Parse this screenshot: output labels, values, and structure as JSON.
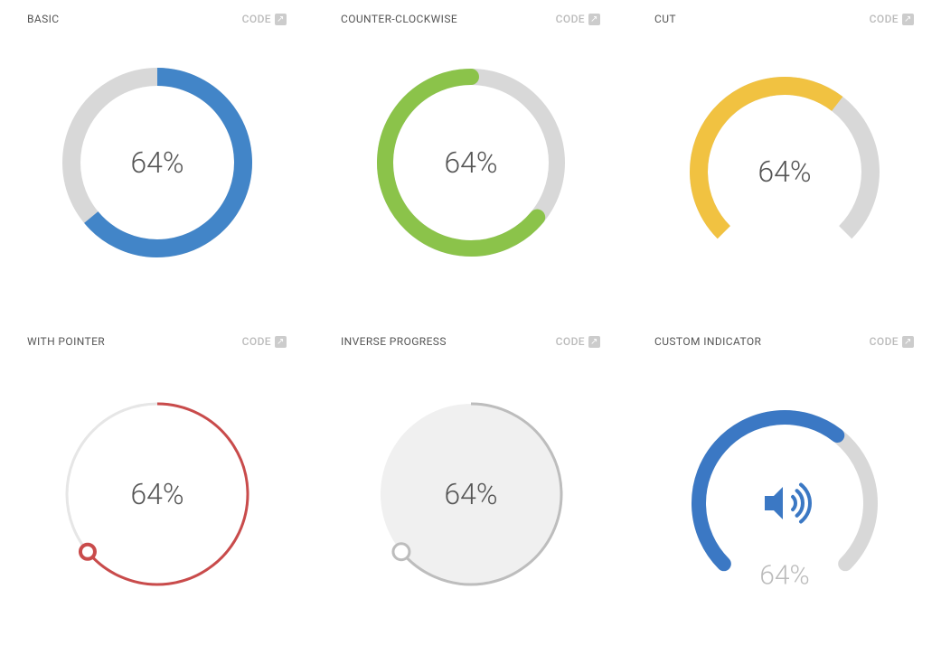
{
  "code_label": "CODE",
  "charts": [
    {
      "id": "basic",
      "title": "BASIC",
      "type": "ring-progress",
      "value": 64,
      "display": "64%",
      "radius": 95,
      "stroke_width": 20,
      "track_color": "#d8d8d8",
      "progress_color": "#4285c8",
      "start_angle": 0,
      "sweep_direction": "cw",
      "arc_span": 360,
      "label_color": "#555555",
      "label_fontsize": 32,
      "background": "#ffffff"
    },
    {
      "id": "ccw",
      "title": "COUNTER-CLOCKWISE",
      "type": "ring-progress",
      "value": 64,
      "display": "64%",
      "radius": 95,
      "stroke_width": 18,
      "track_color": "#d8d8d8",
      "progress_color": "#8bc34a",
      "start_angle": 0,
      "sweep_direction": "ccw",
      "arc_span": 360,
      "rounded_caps": true,
      "label_color": "#555555",
      "label_fontsize": 32,
      "background": "#ffffff"
    },
    {
      "id": "cut",
      "title": "CUT",
      "type": "ring-progress",
      "value": 64,
      "display": "64%",
      "radius": 95,
      "stroke_width": 20,
      "track_color": "#d8d8d8",
      "progress_color": "#f1c241",
      "start_angle": 225,
      "sweep_direction": "cw",
      "arc_span": 270,
      "label_color": "#555555",
      "label_fontsize": 32,
      "background": "#ffffff"
    },
    {
      "id": "pointer",
      "title": "WITH POINTER",
      "type": "ring-progress-pointer",
      "value": 64,
      "display": "64%",
      "radius": 100,
      "stroke_width": 3,
      "track_color": "#e6e6e6",
      "progress_color": "#c94b4b",
      "start_angle": 0,
      "sweep_direction": "cw",
      "arc_span": 360,
      "pointer_radius": 8,
      "pointer_fill": "#ffffff",
      "pointer_stroke": "#c94b4b",
      "pointer_stroke_width": 4,
      "label_color": "#555555",
      "label_fontsize": 32,
      "background": "#ffffff"
    },
    {
      "id": "inverse",
      "title": "INVERSE PROGRESS",
      "type": "disc-progress-pointer",
      "value": 64,
      "display": "64%",
      "radius": 100,
      "stroke_width": 3,
      "disc_fill": "#f0f0f0",
      "progress_color": "#bdbdbd",
      "start_angle": 0,
      "sweep_direction": "cw",
      "arc_span": 360,
      "pointer_radius": 9,
      "pointer_fill": "#ffffff",
      "pointer_stroke": "#bdbdbd",
      "pointer_stroke_width": 3,
      "label_color": "#555555",
      "label_fontsize": 32,
      "background": "#ffffff"
    },
    {
      "id": "custom",
      "title": "CUSTOM INDICATOR",
      "type": "ring-progress-icon",
      "value": 64,
      "display": "64%",
      "radius": 95,
      "stroke_width": 16,
      "track_color": "#d8d8d8",
      "progress_color": "#3b78c4",
      "start_angle": 225,
      "sweep_direction": "cw",
      "arc_span": 270,
      "rounded_caps": true,
      "icon": "volume-up",
      "icon_color": "#3b78c4",
      "label_color": "#bbbbbb",
      "label_fontsize": 30,
      "label_position": "below",
      "background": "#ffffff"
    }
  ]
}
